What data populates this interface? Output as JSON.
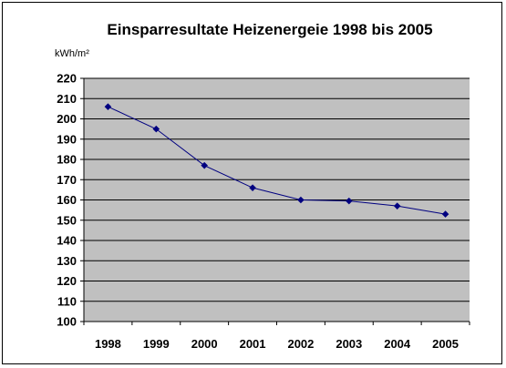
{
  "chart_data": {
    "type": "line",
    "title": "Einsparresultate Heizenergeie 1998 bis 2005",
    "ylabel": "kWh/m²",
    "xlabel": "",
    "categories": [
      "1998",
      "1999",
      "2000",
      "2001",
      "2002",
      "2003",
      "2004",
      "2005"
    ],
    "series": [
      {
        "values": [
          206,
          195,
          177,
          166,
          160,
          159.5,
          157,
          153
        ]
      }
    ],
    "ylim": [
      100,
      220
    ],
    "yticks": [
      100,
      110,
      120,
      130,
      140,
      150,
      160,
      170,
      180,
      190,
      200,
      210,
      220
    ],
    "grid": true,
    "legend": "none",
    "colors": {
      "plot_background": "#c0c0c0",
      "line": "#000080",
      "marker": "#000080",
      "gridline": "#000000"
    }
  }
}
